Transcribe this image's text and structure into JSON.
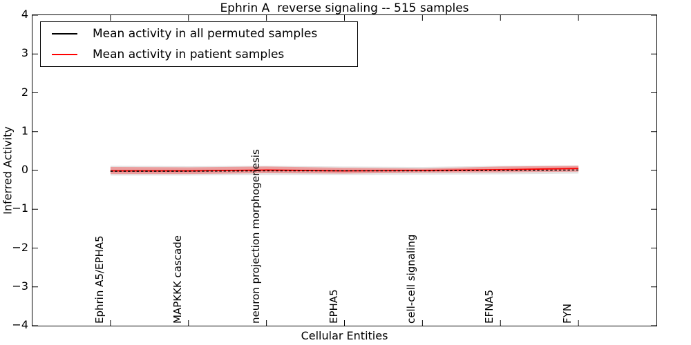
{
  "figure": {
    "background": "#ffffff",
    "axis_color": "#000000"
  },
  "chart_data": {
    "type": "line",
    "title": "Ephrin A  reverse signaling -- 515 samples",
    "xlabel": "Cellular Entities",
    "ylabel": "Inferred Activity",
    "xlim": [
      -1,
      7
    ],
    "ylim": [
      -4,
      4
    ],
    "grid": false,
    "legend_position": "upper-left",
    "yticks": [
      {
        "value": 4,
        "label": "4"
      },
      {
        "value": 3,
        "label": "3"
      },
      {
        "value": 2,
        "label": "2"
      },
      {
        "value": 1,
        "label": "1"
      },
      {
        "value": 0,
        "label": "0"
      },
      {
        "value": -1,
        "label": "−1"
      },
      {
        "value": -2,
        "label": "−2"
      },
      {
        "value": -3,
        "label": "−3"
      },
      {
        "value": -4,
        "label": "−4"
      }
    ],
    "categories": [
      "Ephrin A5/EPHA5",
      "MAPKKK cascade",
      "neuron projection morphogenesis",
      "EPHA5",
      "cell-cell signaling",
      "EFNA5",
      "FYN"
    ],
    "series": [
      {
        "name": "Mean activity in all permuted samples",
        "color": "#000000",
        "style": "dashed",
        "values": [
          -0.02,
          -0.02,
          -0.01,
          -0.01,
          -0.01,
          0.0,
          0.01
        ]
      },
      {
        "name": "Mean activity in patient samples",
        "color": "#ff0000",
        "style": "solid",
        "values": [
          -0.01,
          -0.01,
          0.01,
          -0.01,
          0.0,
          0.02,
          0.05
        ]
      }
    ],
    "bands": [
      {
        "name": "permuted-range",
        "color": "rgba(0,0,0,0.11)",
        "upper": [
          0.12,
          0.11,
          0.12,
          0.1,
          0.09,
          0.12,
          0.13
        ],
        "lower": [
          -0.13,
          -0.13,
          -0.12,
          -0.12,
          -0.11,
          -0.1,
          -0.08
        ]
      },
      {
        "name": "patient-range",
        "color": "rgba(255,0,0,0.30)",
        "upper": [
          0.09,
          0.08,
          0.1,
          0.07,
          0.05,
          0.1,
          0.12
        ],
        "lower": [
          -0.09,
          -0.09,
          -0.07,
          -0.08,
          -0.06,
          -0.05,
          -0.03
        ]
      }
    ]
  }
}
